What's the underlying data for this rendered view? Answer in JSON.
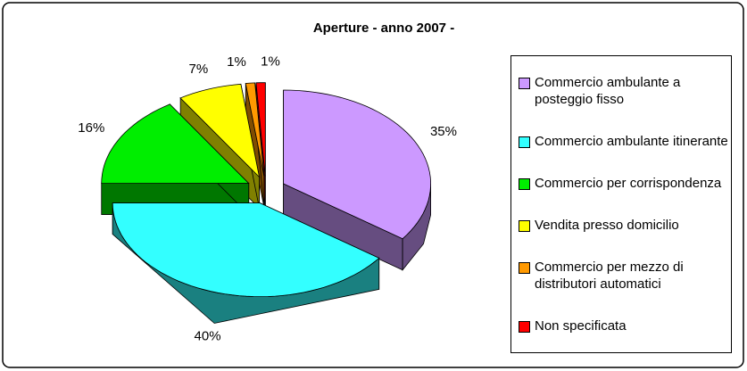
{
  "chart_data": {
    "type": "pie3d",
    "title": "Aperture - anno 2007 -",
    "categories": [
      "Commercio ambulante a posteggio fisso",
      "Commercio ambulante itinerante",
      "Commercio per corrispondenza",
      "Vendita presso domicilio",
      "Commercio per mezzo di distributori automatici",
      "Non specificata"
    ],
    "values": [
      35,
      40,
      16,
      7,
      1,
      1
    ],
    "value_labels": [
      "35%",
      "40%",
      "16%",
      "7%",
      "1%",
      "1%"
    ],
    "colors": [
      "#cc99ff",
      "#33ffff",
      "#00ee00",
      "#ffff00",
      "#ff9900",
      "#ff0000"
    ],
    "legend": "right"
  }
}
